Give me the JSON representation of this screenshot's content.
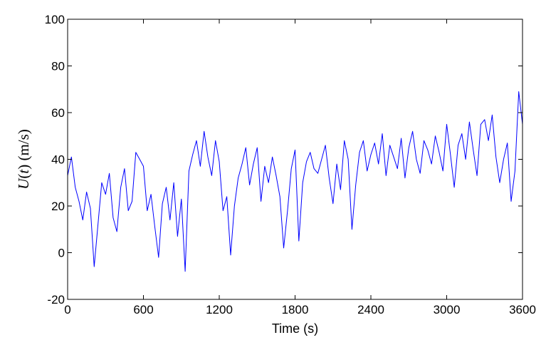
{
  "chart_data": {
    "type": "line",
    "title": "",
    "xlabel": "Time (s)",
    "ylabel": {
      "var": "U",
      "arg": "t",
      "unit": " (m/s)"
    },
    "xlim": [
      0,
      3600
    ],
    "ylim": [
      -20,
      100
    ],
    "xticks": [
      0,
      600,
      1200,
      1800,
      2400,
      3000,
      3600
    ],
    "yticks": [
      -20,
      0,
      20,
      40,
      60,
      80,
      100
    ],
    "grid": false,
    "colors": {
      "series": "#0000ff",
      "axes": "#000000"
    },
    "series": [
      {
        "x": [
          0,
          30,
          60,
          90,
          120,
          150,
          180,
          210,
          240,
          270,
          300,
          330,
          360,
          390,
          420,
          450,
          480,
          510,
          540,
          570,
          600,
          630,
          660,
          690,
          720,
          750,
          780,
          810,
          840,
          870,
          900,
          930,
          960,
          990,
          1020,
          1050,
          1080,
          1110,
          1140,
          1170,
          1200,
          1230,
          1260,
          1290,
          1320,
          1350,
          1380,
          1410,
          1440,
          1470,
          1500,
          1530,
          1560,
          1590,
          1620,
          1650,
          1680,
          1710,
          1740,
          1770,
          1800,
          1830,
          1860,
          1890,
          1920,
          1950,
          1980,
          2010,
          2040,
          2070,
          2100,
          2130,
          2160,
          2190,
          2220,
          2250,
          2280,
          2310,
          2340,
          2370,
          2400,
          2430,
          2460,
          2490,
          2520,
          2550,
          2580,
          2610,
          2640,
          2670,
          2700,
          2730,
          2760,
          2790,
          2820,
          2850,
          2880,
          2910,
          2940,
          2970,
          3000,
          3030,
          3060,
          3090,
          3120,
          3150,
          3180,
          3210,
          3240,
          3270,
          3300,
          3330,
          3360,
          3390,
          3420,
          3450,
          3480,
          3510,
          3540,
          3570,
          3600
        ],
        "y": [
          33,
          41,
          28,
          22,
          14,
          26,
          19,
          -6,
          12,
          30,
          25,
          34,
          15,
          9,
          28,
          36,
          18,
          22,
          43,
          40,
          37,
          18,
          25,
          11,
          -2,
          21,
          28,
          14,
          30,
          7,
          23,
          -8,
          35,
          42,
          48,
          37,
          52,
          41,
          33,
          48,
          39,
          18,
          24,
          -1,
          20,
          32,
          38,
          45,
          29,
          38,
          45,
          22,
          37,
          30,
          41,
          33,
          24,
          2,
          18,
          36,
          44,
          5,
          30,
          39,
          43,
          36,
          34,
          40,
          46,
          32,
          21,
          38,
          27,
          48,
          40,
          10,
          29,
          43,
          48,
          35,
          42,
          47,
          38,
          51,
          33,
          46,
          41,
          36,
          49,
          32,
          45,
          52,
          40,
          34,
          48,
          44,
          38,
          50,
          43,
          35,
          55,
          42,
          28,
          46,
          51,
          40,
          56,
          44,
          33,
          55,
          57,
          48,
          59,
          41,
          30,
          40,
          47,
          22,
          35,
          69,
          55
        ]
      }
    ]
  }
}
